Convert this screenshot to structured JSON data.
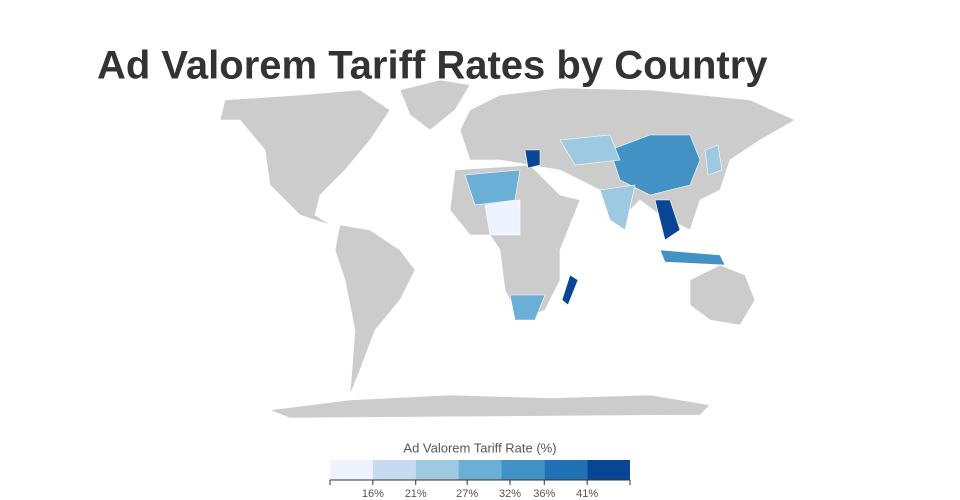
{
  "title": "Ad Valorem Tariff Rates by Country",
  "legend": {
    "title": "Ad Valorem Tariff Rate (%)",
    "colors": [
      "#eff3ff",
      "#c6dbef",
      "#9ecae1",
      "#6baed6",
      "#4292c6",
      "#2171b5",
      "#084594"
    ],
    "ticks": [
      {
        "value": 16,
        "label": "16%"
      },
      {
        "value": 21,
        "label": "21%"
      },
      {
        "value": 27,
        "label": "27%"
      },
      {
        "value": 32,
        "label": "32%"
      },
      {
        "value": 36,
        "label": "36%"
      },
      {
        "value": 41,
        "label": "41%"
      }
    ]
  }
}
